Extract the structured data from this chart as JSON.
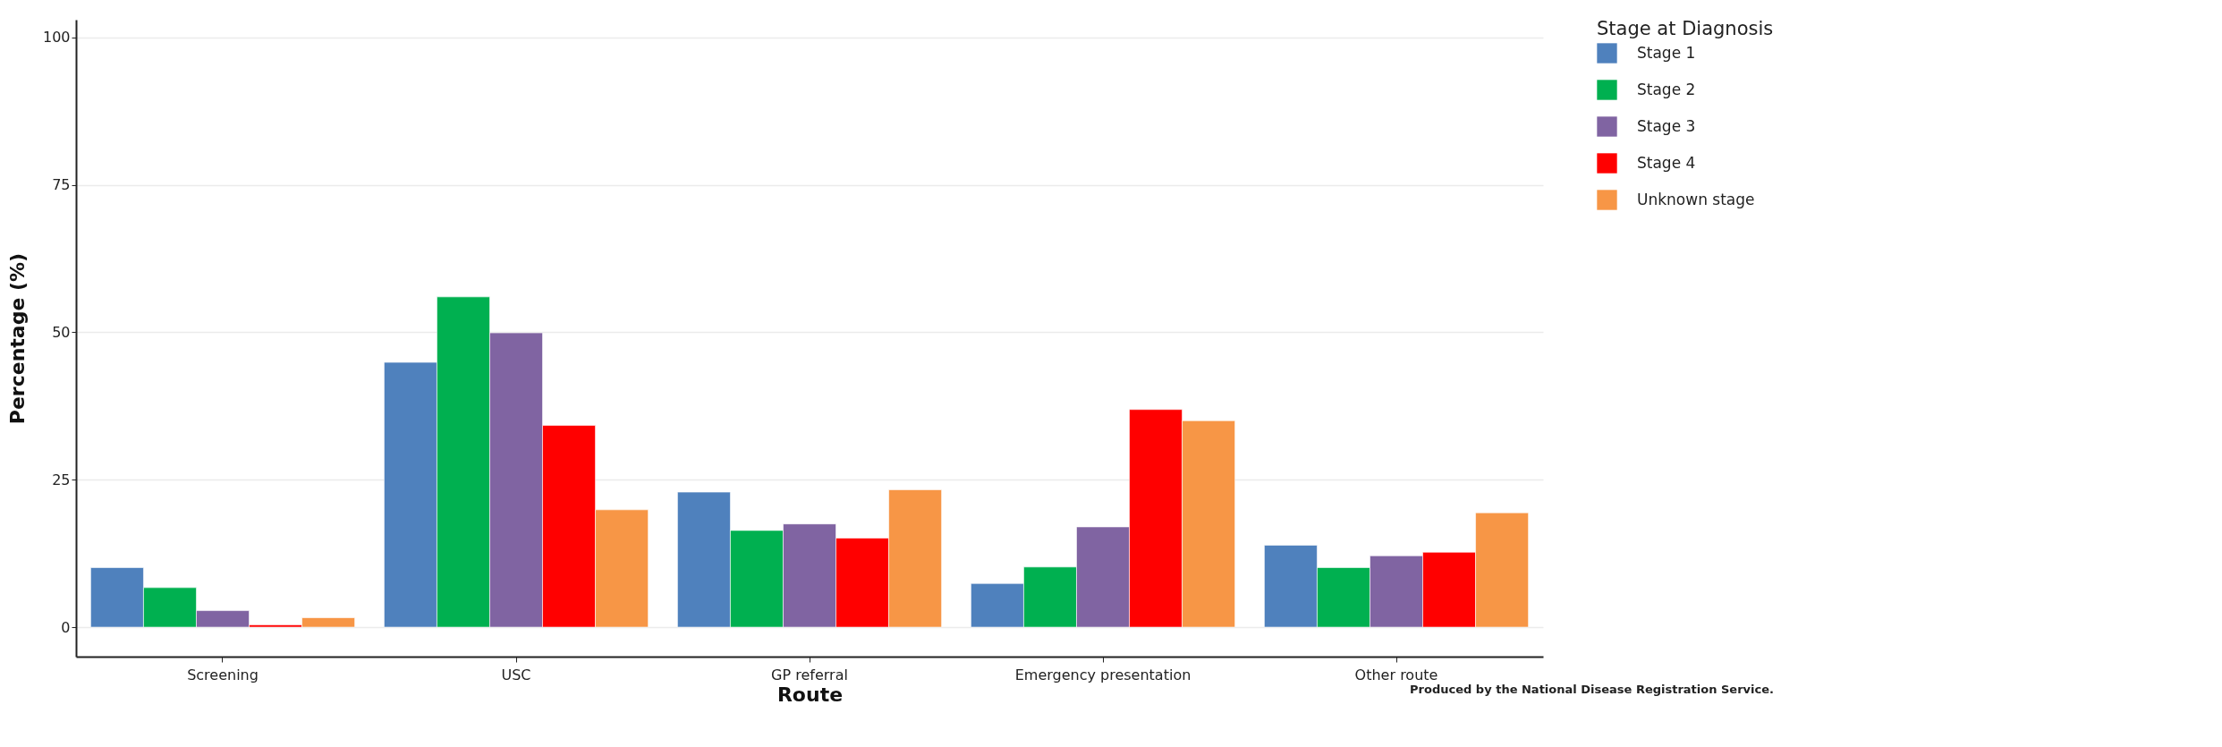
{
  "chart_data": {
    "type": "bar",
    "xlabel": "Route",
    "ylabel": "Percentage (%)",
    "legend_title": "Stage at Diagnosis",
    "categories": [
      "Screening",
      "USC",
      "GP referral",
      "Emergency presentation",
      "Other route"
    ],
    "series": [
      {
        "name": "Stage 1",
        "color": "#4f81bd",
        "values": [
          10.1,
          44.9,
          22.9,
          7.4,
          13.9
        ]
      },
      {
        "name": "Stage 2",
        "color": "#00b050",
        "values": [
          6.7,
          56.0,
          16.4,
          10.2,
          10.1
        ]
      },
      {
        "name": "Stage 3",
        "color": "#8064a2",
        "values": [
          2.8,
          49.9,
          17.5,
          17.0,
          12.1
        ]
      },
      {
        "name": "Stage 4",
        "color": "#ff0000",
        "values": [
          0.4,
          34.2,
          15.1,
          36.9,
          12.7
        ]
      },
      {
        "name": "Unknown stage",
        "color": "#f79646",
        "values": [
          1.6,
          19.9,
          23.3,
          35.0,
          19.4
        ]
      }
    ],
    "ylim": [
      -5,
      103
    ],
    "yticks": [
      0,
      25,
      50,
      75,
      100
    ],
    "grid": "y",
    "legend": "top right",
    "annotations": [
      "Produced by the National Disease Registration Service."
    ]
  }
}
